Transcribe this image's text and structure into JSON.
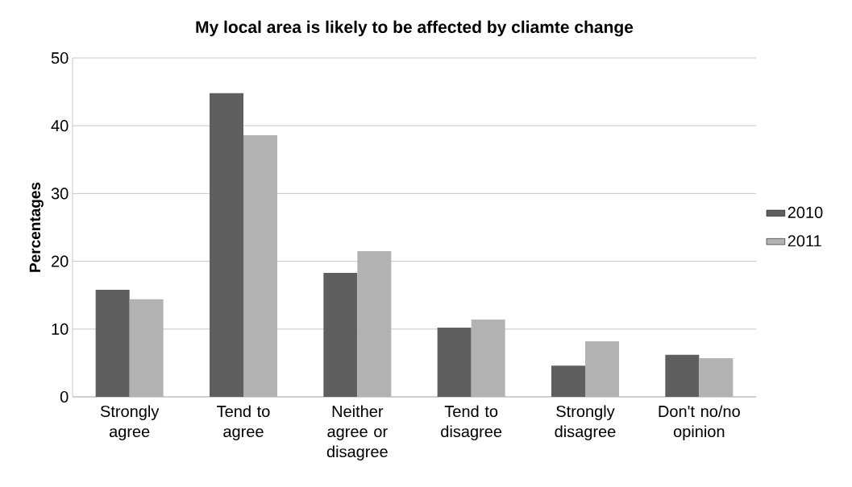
{
  "chart_data": {
    "type": "bar",
    "title": "My local area is likely to be affected by cliamte change",
    "ylabel": "Percentages",
    "categories": [
      "Strongly agree",
      "Tend to agree",
      "Neither agree or disagree",
      "Tend to disagree",
      "Strongly disagree",
      "Don't no/no opinion"
    ],
    "series": [
      {
        "name": "2010",
        "color": "#5f5f5f",
        "values": [
          15.8,
          44.8,
          18.3,
          10.2,
          4.6,
          6.2
        ]
      },
      {
        "name": "2011",
        "color": "#b2b2b2",
        "values": [
          14.4,
          38.6,
          21.5,
          11.4,
          8.2,
          5.7
        ]
      }
    ],
    "ylim": [
      0,
      50
    ],
    "yticks": [
      0,
      10,
      20,
      30,
      40,
      50
    ],
    "grid": "y",
    "legend": "right"
  }
}
